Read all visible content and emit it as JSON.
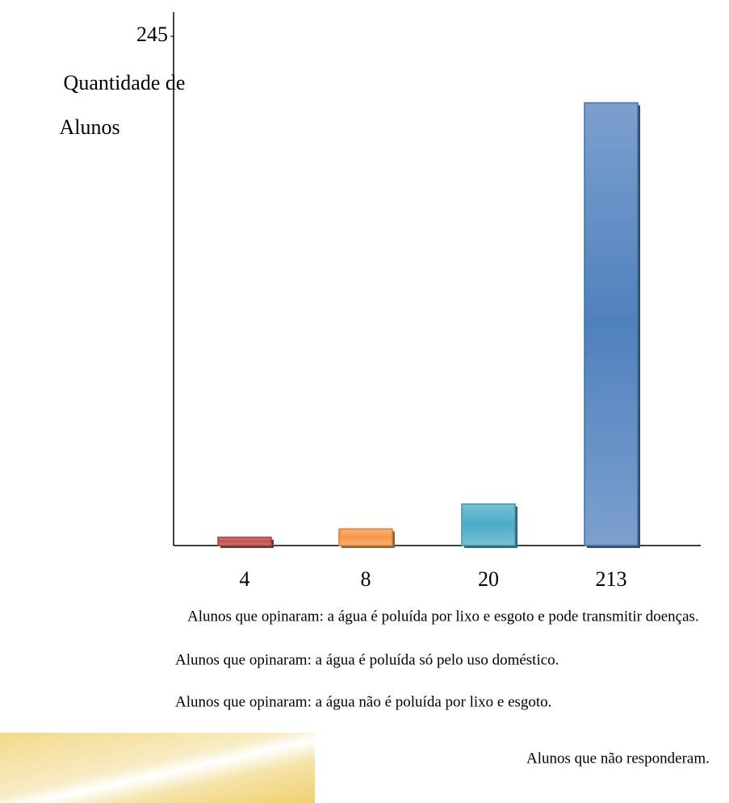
{
  "chart_data": {
    "type": "bar",
    "ylabel": [
      "Quantidade de",
      "Alunos"
    ],
    "ylim": [
      0,
      245
    ],
    "yticks": [
      245
    ],
    "series": [
      {
        "name": "Alunos que opinaram: a água é poluída por lixo e esgoto e pode transmitir doenças.",
        "color": "#c0504d",
        "values": [
          4
        ]
      },
      {
        "name": "Alunos que opinaram: a água é poluída só pelo uso doméstico.",
        "color": "#f79646",
        "values": [
          8
        ]
      },
      {
        "name": "Alunos que opinaram: a água não é poluída por lixo e esgoto.",
        "color": "#4bacc6",
        "values": [
          20
        ]
      },
      {
        "name": "Alunos que não responderam.",
        "color": "#4f81bd",
        "values": [
          213
        ]
      }
    ]
  }
}
